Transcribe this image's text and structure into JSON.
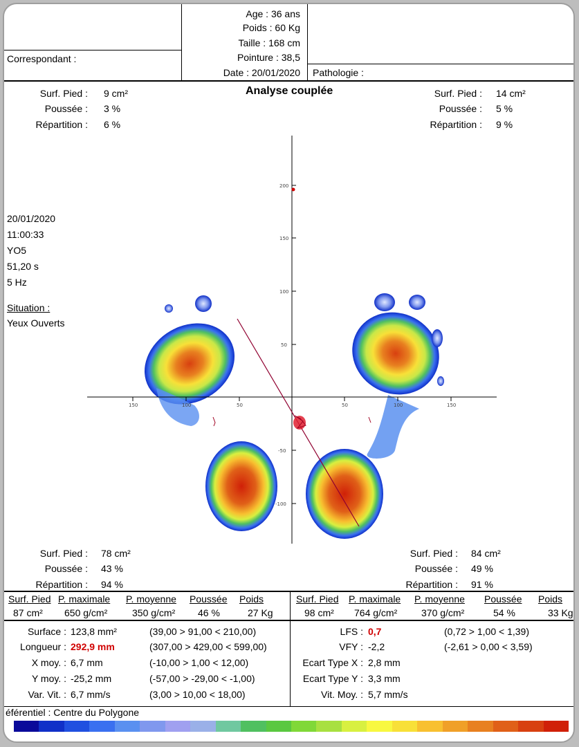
{
  "patient": {
    "age": "Age : 36 ans",
    "poids": "Poids : 60 Kg",
    "taille": "Taille : 168 cm",
    "pointure": "Pointure : 38,5",
    "date": "Date : 20/01/2020",
    "correspondant": "Correspondant :",
    "pathologie": "Pathologie :"
  },
  "title": "Analyse couplée",
  "top_left": {
    "surf_label": "Surf. Pied :",
    "surf_value": "9 cm²",
    "poussee_label": "Poussée :",
    "poussee_value": "3 %",
    "rep_label": "Répartition :",
    "rep_value": "6 %"
  },
  "top_right": {
    "surf_label": "Surf. Pied :",
    "surf_value": "14 cm²",
    "poussee_label": "Poussée :",
    "poussee_value": "5 %",
    "rep_label": "Répartition :",
    "rep_value": "9 %"
  },
  "session": {
    "date": "20/01/2020",
    "time": "11:00:33",
    "code": "YO5",
    "duration": "51,20 s",
    "freq": "5 Hz",
    "situation_label": "Situation :",
    "situation_value": "Yeux Ouverts"
  },
  "bottom_left": {
    "surf_label": "Surf. Pied :",
    "surf_value": "78 cm²",
    "poussee_label": "Poussée :",
    "poussee_value": "43 %",
    "rep_label": "Répartition :",
    "rep_value": "94 %"
  },
  "bottom_right": {
    "surf_label": "Surf. Pied :",
    "surf_value": "84 cm²",
    "poussee_label": "Poussée :",
    "poussee_value": "49 %",
    "rep_label": "Répartition :",
    "rep_value": "91 %"
  },
  "table_headers": [
    "Surf. Pied",
    "P. maximale",
    "P. moyenne",
    "Poussée",
    "Poids"
  ],
  "table_left": [
    "87 cm²",
    "650 g/cm²",
    "350 g/cm²",
    "46 %",
    "27 Kg"
  ],
  "table_right": [
    "98 cm²",
    "764 g/cm²",
    "370 g/cm²",
    "54 %",
    "33 Kg"
  ],
  "stats_left": [
    {
      "label": "Surface :",
      "value": "123,8 mm²",
      "range": "(39,00 > 91,00 < 210,00)",
      "alert": false
    },
    {
      "label": "Longueur :",
      "value": "292,9 mm",
      "range": "(307,00 > 429,00 < 599,00)",
      "alert": true
    },
    {
      "label": "X moy. :",
      "value": "6,7 mm",
      "range": "(-10,00 > 1,00 < 12,00)",
      "alert": false
    },
    {
      "label": "Y moy. :",
      "value": "-25,2 mm",
      "range": "(-57,00 > -29,00 < -1,00)",
      "alert": false
    },
    {
      "label": "Var. Vit. :",
      "value": "6,7 mm/s",
      "range": "(3,00 > 10,00 < 18,00)",
      "alert": false
    }
  ],
  "stats_right": [
    {
      "label": "LFS :",
      "value": "0,7",
      "range": "(0,72 > 1,00 < 1,39)",
      "alert": true
    },
    {
      "label": "VFY :",
      "value": "-2,2",
      "range": "(-2,61 > 0,00 < 3,59)",
      "alert": false
    },
    {
      "label": "Ecart Type X :",
      "value": "2,8 mm",
      "range": "",
      "alert": false
    },
    {
      "label": "Ecart Type Y :",
      "value": "3,3 mm",
      "range": "",
      "alert": false
    },
    {
      "label": "Vit. Moy. :",
      "value": "5,7 mm/s",
      "range": "",
      "alert": false
    }
  ],
  "referentiel": "éférentiel : Centre du Polygone",
  "axis_ticks": {
    "y": [
      "200",
      "150",
      "100",
      "50",
      "-50",
      "-100"
    ],
    "x": [
      "150",
      "100",
      "50",
      "50",
      "100",
      "150"
    ]
  },
  "colorbar": [
    "#0a0a9a",
    "#1030c8",
    "#2050e0",
    "#3a70f0",
    "#5a90f0",
    "#8098ee",
    "#a0a0f0",
    "#9ab0e8",
    "#70c8a0",
    "#50c060",
    "#5ac840",
    "#80d838",
    "#a8e040",
    "#d8f040",
    "#f8f840",
    "#f8e038",
    "#f8c030",
    "#f0a028",
    "#e88020",
    "#e06018",
    "#d84010",
    "#d02008"
  ]
}
